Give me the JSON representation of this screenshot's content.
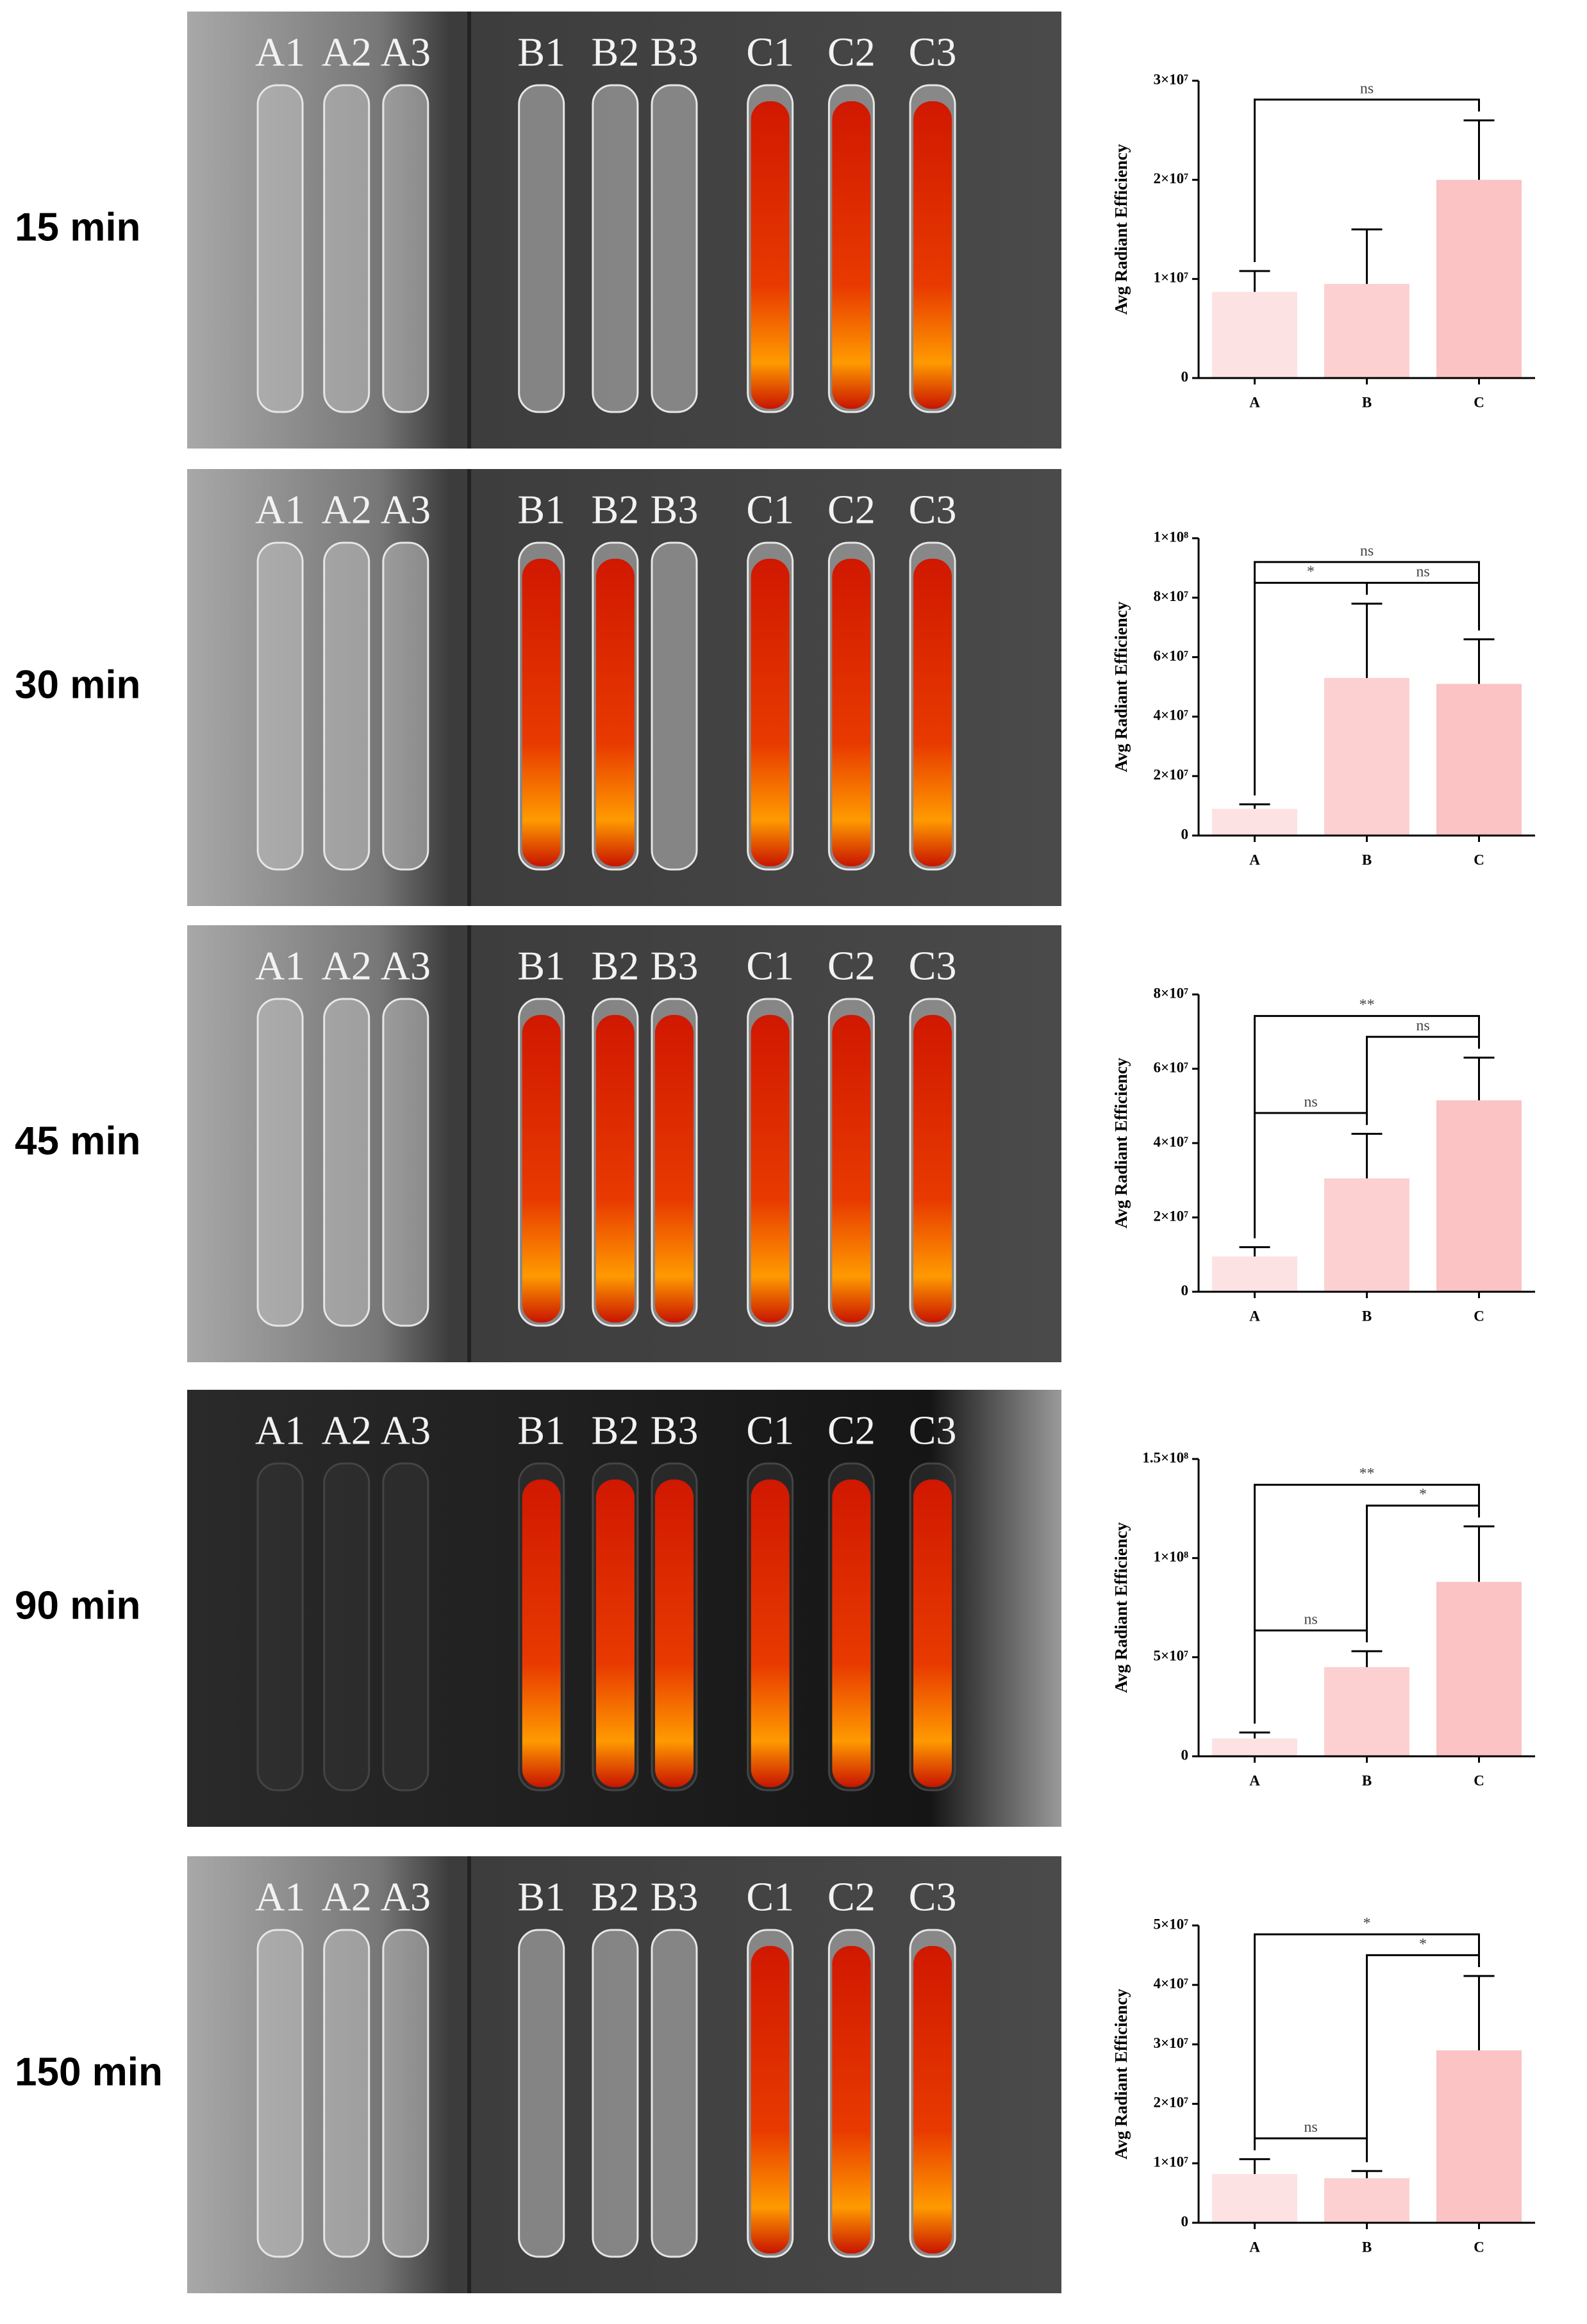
{
  "rows": [
    {
      "time": "15 min",
      "labels": [
        "A1",
        "A2",
        "A3",
        "B1",
        "B2",
        "B3",
        "C1",
        "C2",
        "C3"
      ]
    },
    {
      "time": "30 min",
      "labels": [
        "A1",
        "A2",
        "A3",
        "B1",
        "B2",
        "B3",
        "C1",
        "C2",
        "C3"
      ]
    },
    {
      "time": "45 min",
      "labels": [
        "A1",
        "A2",
        "A3",
        "B1",
        "B2",
        "B3",
        "C1",
        "C2",
        "C3"
      ]
    },
    {
      "time": "90 min",
      "labels": [
        "A1",
        "A2",
        "A3",
        "B1",
        "B2",
        "B3",
        "C1",
        "C2",
        "C3"
      ]
    },
    {
      "time": "150 min",
      "labels": [
        "A1",
        "A2",
        "A3",
        "B1",
        "B2",
        "B3",
        "C1",
        "C2",
        "C3"
      ]
    }
  ],
  "chart_data": [
    {
      "type": "bar",
      "ylabel": "Avg Radiant Efficiency",
      "categories": [
        "A",
        "B",
        "C"
      ],
      "colors": [
        "#fde2e3",
        "#fcd0d0",
        "#fbc3c3"
      ],
      "values": [
        8700000,
        9500000,
        20000000
      ],
      "errors": [
        2100000,
        5500000,
        6000000
      ],
      "ylim": [
        0,
        30000000
      ],
      "yticks": [
        0,
        {
          "value": 10000000,
          "label": "1×10⁷"
        },
        {
          "value": 20000000,
          "label": "2×10⁷"
        },
        {
          "value": 30000000,
          "label": "3×10⁷"
        }
      ],
      "annotations": [
        {
          "between": [
            "A",
            "C"
          ],
          "label": "ns"
        }
      ]
    },
    {
      "type": "bar",
      "ylabel": "Avg Radiant Efficiency",
      "categories": [
        "A",
        "B",
        "C"
      ],
      "colors": [
        "#fde2e3",
        "#fcd0d0",
        "#fbc3c3"
      ],
      "values": [
        9000000,
        53000000,
        51000000
      ],
      "errors": [
        1500000,
        25000000,
        15000000
      ],
      "ylim": [
        0,
        100000000
      ],
      "yticks": [
        0,
        {
          "value": 20000000,
          "label": "2×10⁷"
        },
        {
          "value": 40000000,
          "label": "4×10⁷"
        },
        {
          "value": 60000000,
          "label": "6×10⁷"
        },
        {
          "value": 80000000,
          "label": "8×10⁷"
        },
        {
          "value": 100000000,
          "label": "1×10⁸"
        }
      ],
      "annotations": [
        {
          "between": [
            "A",
            "B"
          ],
          "label": "*"
        },
        {
          "between": [
            "B",
            "C"
          ],
          "label": "ns"
        },
        {
          "between": [
            "A",
            "C"
          ],
          "label": "ns"
        }
      ]
    },
    {
      "type": "bar",
      "ylabel": "Avg Radiant Efficiency",
      "categories": [
        "A",
        "B",
        "C"
      ],
      "colors": [
        "#fde2e3",
        "#fcd0d0",
        "#fbc3c3"
      ],
      "values": [
        9500000,
        30500000,
        51500000
      ],
      "errors": [
        2500000,
        12000000,
        11500000
      ],
      "ylim": [
        0,
        80000000
      ],
      "yticks": [
        0,
        {
          "value": 20000000,
          "label": "2×10⁷"
        },
        {
          "value": 40000000,
          "label": "4×10⁷"
        },
        {
          "value": 60000000,
          "label": "6×10⁷"
        },
        {
          "value": 80000000,
          "label": "8×10⁷"
        }
      ],
      "annotations": [
        {
          "between": [
            "A",
            "B"
          ],
          "label": "ns"
        },
        {
          "between": [
            "B",
            "C"
          ],
          "label": "ns"
        },
        {
          "between": [
            "A",
            "C"
          ],
          "label": "**"
        }
      ]
    },
    {
      "type": "bar",
      "ylabel": "Avg Radiant Efficiency",
      "categories": [
        "A",
        "B",
        "C"
      ],
      "colors": [
        "#fde2e3",
        "#fcd0d0",
        "#fbc3c3"
      ],
      "values": [
        9000000,
        45000000,
        88000000
      ],
      "errors": [
        3000000,
        8000000,
        28000000
      ],
      "ylim": [
        0,
        150000000
      ],
      "yticks": [
        0,
        {
          "value": 50000000,
          "label": "5×10⁷"
        },
        {
          "value": 100000000,
          "label": "1×10⁸"
        },
        {
          "value": 150000000,
          "label": "1.5×10⁸"
        }
      ],
      "annotations": [
        {
          "between": [
            "A",
            "B"
          ],
          "label": "ns"
        },
        {
          "between": [
            "B",
            "C"
          ],
          "label": "*"
        },
        {
          "between": [
            "A",
            "C"
          ],
          "label": "**"
        }
      ]
    },
    {
      "type": "bar",
      "ylabel": "Avg Radiant Efficiency",
      "categories": [
        "A",
        "B",
        "C"
      ],
      "colors": [
        "#fde2e3",
        "#fcd0d0",
        "#fbc3c3"
      ],
      "values": [
        8200000,
        7500000,
        29000000
      ],
      "errors": [
        2500000,
        1200000,
        12500000
      ],
      "ylim": [
        0,
        50000000
      ],
      "yticks": [
        0,
        {
          "value": 10000000,
          "label": "1×10⁷"
        },
        {
          "value": 20000000,
          "label": "2×10⁷"
        },
        {
          "value": 30000000,
          "label": "3×10⁷"
        },
        {
          "value": 40000000,
          "label": "4×10⁷"
        },
        {
          "value": 50000000,
          "label": "5×10⁷"
        }
      ],
      "annotations": [
        {
          "between": [
            "A",
            "B"
          ],
          "label": "ns"
        },
        {
          "between": [
            "B",
            "C"
          ],
          "label": "*"
        },
        {
          "between": [
            "A",
            "C"
          ],
          "label": "*"
        }
      ]
    }
  ]
}
